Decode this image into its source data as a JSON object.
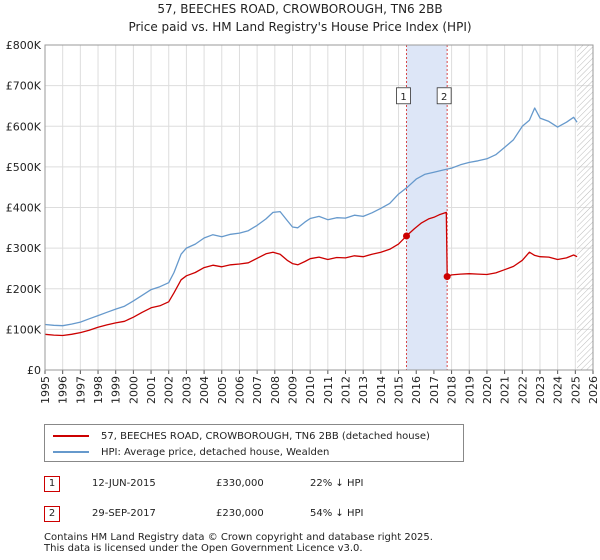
{
  "title_line1": "57, BEECHES ROAD, CROWBOROUGH, TN6 2BB",
  "title_line2": "Price paid vs. HM Land Registry's House Price Index (HPI)",
  "colors": {
    "property": "#cc0000",
    "hpi": "#6699cc",
    "band": "#dde6f7",
    "marker_border": "#cc0000"
  },
  "legend": {
    "property_label": "57, BEECHES ROAD, CROWBOROUGH, TN6 2BB (detached house)",
    "hpi_label": "HPI: Average price, detached house, Wealden"
  },
  "transactions": [
    {
      "num": "1",
      "date": "12-JUN-2015",
      "price": "£330,000",
      "hpi_diff": "22% ↓ HPI"
    },
    {
      "num": "2",
      "date": "29-SEP-2017",
      "price": "£230,000",
      "hpi_diff": "54% ↓ HPI"
    }
  ],
  "footer_line1": "Contains HM Land Registry data © Crown copyright and database right 2025.",
  "footer_line2": "This data is licensed under the Open Government Licence v3.0.",
  "chart_data": {
    "type": "line",
    "title": "57, BEECHES ROAD, CROWBOROUGH, TN6 2BB — Price paid vs. HM Land Registry's House Price Index (HPI)",
    "xlabel": "",
    "ylabel": "",
    "xlim": [
      1995,
      2026
    ],
    "ylim": [
      0,
      800000
    ],
    "x_ticks": [
      "1995",
      "1996",
      "1997",
      "1998",
      "1999",
      "2000",
      "2001",
      "2002",
      "2003",
      "2004",
      "2005",
      "2006",
      "2007",
      "2008",
      "2009",
      "2010",
      "2011",
      "2012",
      "2013",
      "2014",
      "2015",
      "2016",
      "2017",
      "2018",
      "2019",
      "2020",
      "2021",
      "2022",
      "2023",
      "2024",
      "2025",
      "2026"
    ],
    "y_ticks": [
      {
        "value": 0,
        "label": "£0"
      },
      {
        "value": 100000,
        "label": "£100K"
      },
      {
        "value": 200000,
        "label": "£200K"
      },
      {
        "value": 300000,
        "label": "£300K"
      },
      {
        "value": 400000,
        "label": "£400K"
      },
      {
        "value": 500000,
        "label": "£500K"
      },
      {
        "value": 600000,
        "label": "£600K"
      },
      {
        "value": 700000,
        "label": "£700K"
      },
      {
        "value": 800000,
        "label": "£800K"
      }
    ],
    "grid": true,
    "shaded_period": [
      2015.45,
      2017.75
    ],
    "future_hatch_from": 2025.1,
    "markers": [
      {
        "label": "1",
        "x": 2015.45,
        "y": 330000,
        "box_y": 675000
      },
      {
        "label": "2",
        "x": 2017.75,
        "y": 230000,
        "box_y": 675000
      }
    ],
    "series": [
      {
        "name": "57, BEECHES ROAD, CROWBOROUGH, TN6 2BB (detached house)",
        "x": [
          1995.0,
          1995.5,
          1996.0,
          1996.5,
          1997.0,
          1997.5,
          1998.0,
          1998.5,
          1999.0,
          1999.5,
          2000.0,
          2000.5,
          2001.0,
          2001.5,
          2002.0,
          2002.3,
          2002.7,
          2003.0,
          2003.5,
          2004.0,
          2004.5,
          2005.0,
          2005.5,
          2006.0,
          2006.5,
          2007.0,
          2007.5,
          2007.9,
          2008.3,
          2008.7,
          2009.0,
          2009.3,
          2009.7,
          2010.0,
          2010.5,
          2011.0,
          2011.5,
          2012.0,
          2012.5,
          2013.0,
          2013.5,
          2014.0,
          2014.5,
          2015.0,
          2015.45,
          2015.9,
          2016.3,
          2016.7,
          2017.0,
          2017.3,
          2017.7,
          2017.75,
          2018.0,
          2018.5,
          2019.0,
          2019.5,
          2020.0,
          2020.5,
          2021.0,
          2021.5,
          2022.0,
          2022.4,
          2022.7,
          2023.0,
          2023.5,
          2024.0,
          2024.5,
          2024.9,
          2025.1
        ],
        "values": [
          88000,
          86000,
          85000,
          88000,
          92000,
          98000,
          105000,
          111000,
          116000,
          120000,
          130000,
          142000,
          153000,
          158000,
          168000,
          190000,
          222000,
          232000,
          240000,
          252000,
          258000,
          254000,
          259000,
          261000,
          264000,
          275000,
          286000,
          290000,
          285000,
          270000,
          262000,
          259000,
          267000,
          274000,
          278000,
          272000,
          277000,
          276000,
          281000,
          279000,
          285000,
          290000,
          297000,
          310000,
          330000,
          348000,
          362000,
          372000,
          376000,
          382000,
          388000,
          230000,
          234000,
          236000,
          237000,
          236000,
          235000,
          239000,
          247000,
          255000,
          270000,
          290000,
          282000,
          279000,
          278000,
          272000,
          276000,
          283000,
          279000
        ]
      },
      {
        "name": "HPI: Average price, detached house, Wealden",
        "x": [
          1995.0,
          1995.5,
          1996.0,
          1996.5,
          1997.0,
          1997.5,
          1998.0,
          1998.5,
          1999.0,
          1999.5,
          2000.0,
          2000.5,
          2001.0,
          2001.5,
          2002.0,
          2002.3,
          2002.7,
          2003.0,
          2003.5,
          2004.0,
          2004.5,
          2005.0,
          2005.5,
          2006.0,
          2006.5,
          2007.0,
          2007.5,
          2007.9,
          2008.3,
          2008.7,
          2009.0,
          2009.3,
          2009.7,
          2010.0,
          2010.5,
          2011.0,
          2011.5,
          2012.0,
          2012.5,
          2013.0,
          2013.5,
          2014.0,
          2014.5,
          2015.0,
          2015.5,
          2016.0,
          2016.5,
          2017.0,
          2017.5,
          2018.0,
          2018.5,
          2019.0,
          2019.5,
          2020.0,
          2020.5,
          2021.0,
          2021.5,
          2022.0,
          2022.4,
          2022.7,
          2023.0,
          2023.5,
          2024.0,
          2024.5,
          2024.9,
          2025.1
        ],
        "values": [
          112000,
          110000,
          109000,
          113000,
          118000,
          126000,
          134000,
          142000,
          150000,
          157000,
          170000,
          184000,
          198000,
          205000,
          215000,
          240000,
          285000,
          300000,
          310000,
          325000,
          333000,
          328000,
          334000,
          337000,
          343000,
          356000,
          372000,
          388000,
          390000,
          368000,
          352000,
          350000,
          364000,
          373000,
          378000,
          370000,
          375000,
          374000,
          381000,
          378000,
          387000,
          398000,
          410000,
          433000,
          450000,
          470000,
          482000,
          487000,
          492000,
          497000,
          505000,
          511000,
          515000,
          520000,
          530000,
          548000,
          567000,
          600000,
          615000,
          645000,
          620000,
          612000,
          598000,
          610000,
          622000,
          610000
        ]
      }
    ]
  }
}
